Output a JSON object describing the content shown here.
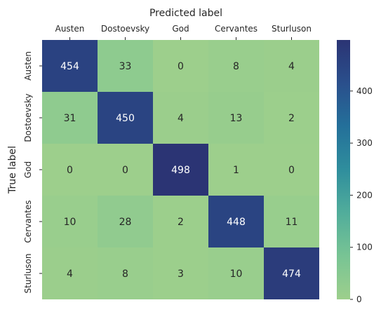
{
  "chart_data": {
    "type": "heatmap",
    "title": "",
    "xlabel": "Predicted label",
    "ylabel": "True label",
    "x_categories": [
      "Austen",
      "Dostoevsky",
      "God",
      "Cervantes",
      "Sturluson"
    ],
    "y_categories": [
      "Austen",
      "Dostoevsky",
      "God",
      "Cervantes",
      "Sturluson"
    ],
    "values": [
      [
        454,
        33,
        0,
        8,
        4
      ],
      [
        31,
        450,
        4,
        13,
        2
      ],
      [
        0,
        0,
        498,
        1,
        0
      ],
      [
        10,
        28,
        2,
        448,
        11
      ],
      [
        4,
        8,
        3,
        10,
        474
      ]
    ],
    "colorbar": {
      "range": [
        0,
        498
      ],
      "ticks": [
        "0",
        "100",
        "200",
        "300",
        "400"
      ],
      "colormap": [
        "#9dcf8c",
        "#78c494",
        "#51ad9b",
        "#2f8e9d",
        "#24709a",
        "#2a4f8c",
        "#2b3474"
      ]
    },
    "grid": false,
    "legend": "none"
  }
}
